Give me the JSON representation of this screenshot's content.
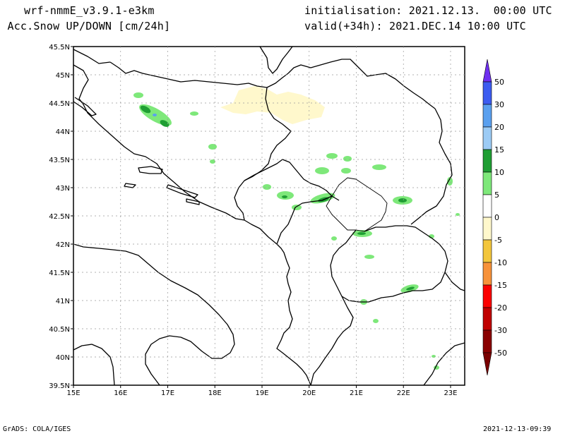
{
  "header": {
    "model": "wrf-nmmE_v3.9.1-e3km",
    "field": "n Acc.Snow UP/DOWN [cm/24h]",
    "init": "initialisation: 2021.12.13.  00:00 UTC",
    "valid": "valid(+34h): 2021.DEC.14 10:00 UTC"
  },
  "footer": {
    "credit": "GrADS: COLA/IGES",
    "timestamp": "2021-12-13-09:39"
  },
  "map": {
    "lon_ticks": [
      "15E",
      "16E",
      "17E",
      "18E",
      "19E",
      "20E",
      "21E",
      "22E",
      "23E"
    ],
    "lat_ticks": [
      "45.5N",
      "45N",
      "44.5N",
      "44N",
      "43.5N",
      "43N",
      "42.5N",
      "42N",
      "41.5N",
      "41N",
      "40.5N",
      "40N",
      "39.5N"
    ],
    "lon_range": [
      15,
      23.3
    ],
    "lat_range": [
      39.5,
      45.5
    ],
    "grid": true
  },
  "colorbar": {
    "labels": [
      "50",
      "30",
      "20",
      "15",
      "10",
      "5",
      "0",
      "-5",
      "-10",
      "-15",
      "-20",
      "-30",
      "-50"
    ],
    "colors": [
      "#6f2ff0",
      "#3c5cf0",
      "#5aa0ef",
      "#9ccbf5",
      "#1f9e33",
      "#7ee87a",
      "#ffffff",
      "#fff8cc",
      "#f3c63c",
      "#f7923a",
      "#fb0000",
      "#c00000",
      "#8a0000",
      "#7a0000"
    ]
  },
  "palette": {
    "snow_up_light": "#7ee87a",
    "snow_up_dark": "#1f9e33",
    "snow_up_blue": "#5aa0ef",
    "snow_down_light": "#fff8cc",
    "coast": "#000000",
    "grid": "#999999"
  }
}
